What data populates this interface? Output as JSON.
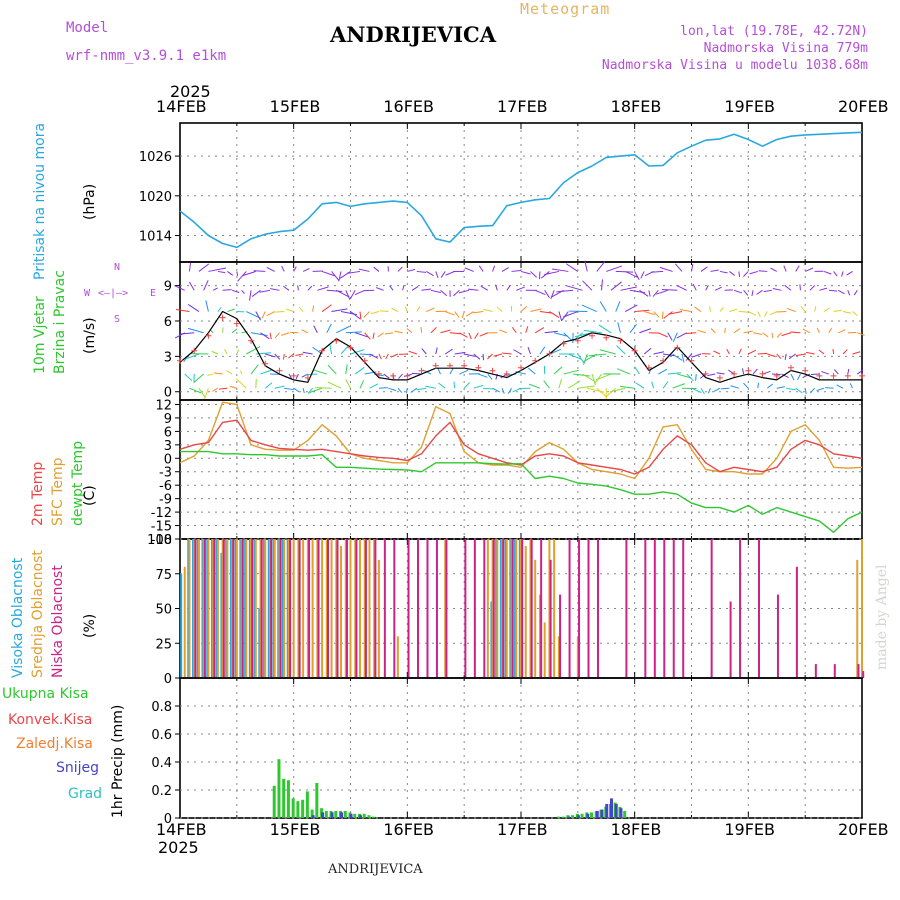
{
  "header": {
    "model_label": "Model",
    "model_name": "wrf-nmm_v3.9.1  e1km",
    "title": "Meteogram",
    "station": "ANDRIJEVICA",
    "coords": "lon,lat (19.78E, 42.72N)",
    "elevation": "Nadmorska Visina 779m",
    "model_elevation": "Nadmorska Visina u modelu 1038.68m",
    "year_top": "2025",
    "year_bottom": "2025",
    "footer_station": "ANDRIJEVICA",
    "credit": "made by Angel"
  },
  "axis": {
    "dates": [
      "14FEB",
      "15FEB",
      "16FEB",
      "17FEB",
      "18FEB",
      "19FEB",
      "20FEB"
    ]
  },
  "labels": {
    "pressure": "Pritisak na nivou mora",
    "pressure_unit": "(hPa)",
    "wind_1": "10m Vjetar",
    "wind_2": "Brzina i Pravac",
    "wind_unit": "(m/s)",
    "compass_n": "N",
    "compass_s": "S",
    "compass_w": "W",
    "compass_e": "E",
    "temp_2m": "2m Temp",
    "temp_sfc": "SFC Temp",
    "temp_dew": "dewpt Temp",
    "temp_unit": "(C)",
    "cloud_high": "Visoka Oblacnost",
    "cloud_mid": "Srednja Oblacnost",
    "cloud_low": "Niska Oblacnost",
    "cloud_unit": "(%)",
    "precip_total": "Ukupna Kisa",
    "precip_conv": "Konvek.Kisa",
    "precip_frozen": "Zaledj.Kisa",
    "precip_snow": "Snijeg",
    "precip_hail": "Grad",
    "precip_unit": "1hr Precip (mm)"
  },
  "colors": {
    "pressure": "#29a8e0",
    "temp_2m": "#e8474a",
    "temp_sfc": "#e0a030",
    "temp_dew": "#2ec82e",
    "cloud_high": "#29a8e0",
    "cloud_mid": "#e0a030",
    "cloud_low": "#cc2288",
    "precip_total": "#2ec82e",
    "precip_conv": "#e8474a",
    "precip_frozen": "#f07f30",
    "precip_snow": "#4444cc",
    "precip_hail": "#30c0c0",
    "wind_purple": "#8a2be2",
    "credit": "#cfd8cf"
  },
  "chart_data": [
    {
      "type": "line",
      "panel": "pressure",
      "ylim": [
        1010,
        1031
      ],
      "yticks": [
        "1014",
        "1020",
        "1026"
      ],
      "series": [
        {
          "x": [
            0,
            3,
            6,
            9,
            12,
            15,
            18,
            21,
            24,
            27,
            30,
            33,
            36,
            39,
            42,
            45,
            48,
            51,
            54,
            57,
            60,
            63,
            66,
            69,
            72,
            75,
            78,
            81,
            84,
            87,
            90,
            93,
            96,
            99,
            102,
            105,
            108,
            111,
            114,
            117,
            120,
            123,
            126,
            129,
            132,
            135,
            138,
            141,
            144
          ],
          "values": [
            1017.7,
            1016,
            1014,
            1012.8,
            1012.2,
            1013.5,
            1014.2,
            1014.6,
            1014.8,
            1016.5,
            1018.8,
            1019,
            1018.4,
            1018.8,
            1019,
            1019.2,
            1019,
            1017,
            1013.5,
            1013,
            1015.2,
            1015.4,
            1015.5,
            1018.5,
            1019,
            1019.4,
            1019.6,
            1022,
            1023.5,
            1024.5,
            1025.8,
            1026,
            1026.2,
            1024.5,
            1024.6,
            1026.5,
            1027.5,
            1028.4,
            1028.6,
            1029.3,
            1028.5,
            1027.5,
            1028.5,
            1029,
            1029.2,
            1029.3,
            1029.4,
            1029.5,
            1029.6
          ]
        }
      ]
    },
    {
      "type": "line",
      "panel": "wind",
      "ylim": [
        -0.7,
        11
      ],
      "yticks": [
        "0",
        "3",
        "6",
        "9"
      ],
      "series": [
        {
          "x": [
            0,
            3,
            6,
            9,
            12,
            15,
            18,
            21,
            24,
            27,
            30,
            33,
            36,
            39,
            42,
            45,
            48,
            51,
            54,
            57,
            60,
            63,
            66,
            69,
            72,
            75,
            78,
            81,
            84,
            87,
            90,
            93,
            96,
            99,
            102,
            105,
            108,
            111,
            114,
            117,
            120,
            123,
            126,
            129,
            132,
            135,
            138,
            141,
            144
          ],
          "values": [
            2.5,
            3.5,
            5,
            6.8,
            6.2,
            4.5,
            2.2,
            1.5,
            1,
            0.8,
            3.5,
            4.5,
            3.8,
            2.5,
            1.2,
            1,
            1,
            1.5,
            2,
            2,
            2,
            1.8,
            1.5,
            1.2,
            1.8,
            2.5,
            3.2,
            4.2,
            4.5,
            5,
            4.8,
            4.5,
            3.5,
            1.8,
            2.5,
            3.8,
            2.5,
            1.2,
            0.8,
            1.2,
            1.5,
            1.2,
            1,
            1.8,
            1.5,
            1,
            1,
            1,
            1
          ]
        }
      ]
    },
    {
      "type": "line",
      "panel": "temperature",
      "ylim": [
        -18,
        13
      ],
      "yticks": [
        "12",
        "9",
        "6",
        "3",
        "0",
        "-3",
        "-6",
        "-9",
        "-12",
        "-15",
        "-18"
      ],
      "series": [
        {
          "x": [
            0,
            3,
            6,
            9,
            12,
            15,
            18,
            21,
            24,
            27,
            30,
            33,
            36,
            39,
            42,
            45,
            48,
            51,
            54,
            57,
            60,
            63,
            66,
            69,
            72,
            75,
            78,
            81,
            84,
            87,
            90,
            93,
            96,
            99,
            102,
            105,
            108,
            111,
            114,
            117,
            120,
            123,
            126,
            129,
            132,
            135,
            138,
            141,
            144
          ],
          "values": [
            2,
            3,
            3.5,
            8,
            8.5,
            4,
            3,
            2.2,
            2,
            1.8,
            2,
            1.5,
            1,
            0.5,
            0.2,
            0,
            -0.5,
            1,
            5,
            8,
            3,
            1,
            0,
            -1,
            -1.5,
            0.5,
            1,
            0.5,
            -1,
            -1.5,
            -2,
            -2.5,
            -3.5,
            -2,
            2,
            5,
            3,
            -1,
            -3,
            -2,
            -2.5,
            -3,
            -2,
            2,
            4,
            3,
            1,
            0.5,
            0
          ]
        },
        {
          "x": [
            0,
            3,
            6,
            9,
            12,
            15,
            18,
            21,
            24,
            27,
            30,
            33,
            36,
            39,
            42,
            45,
            48,
            51,
            54,
            57,
            60,
            63,
            66,
            69,
            72,
            75,
            78,
            81,
            84,
            87,
            90,
            93,
            96,
            99,
            102,
            105,
            108,
            111,
            114,
            117,
            120,
            123,
            126,
            129,
            132,
            135,
            138,
            141,
            144
          ],
          "values": [
            -1,
            0.5,
            4,
            12.5,
            12,
            3,
            2,
            1.8,
            1.8,
            4,
            7.5,
            5,
            1,
            0,
            -0.5,
            -1,
            -1,
            2.5,
            11.5,
            10,
            1.5,
            -1,
            -1.5,
            -1.5,
            -2,
            1.5,
            3.5,
            2,
            -1,
            -2.5,
            -3,
            -3.5,
            -4.5,
            0,
            7,
            7.5,
            2,
            -2.5,
            -3,
            -3,
            -3.5,
            -3.5,
            0,
            6,
            7.5,
            4,
            -2,
            -2.2,
            -2
          ]
        },
        {
          "x": [
            0,
            3,
            6,
            9,
            12,
            15,
            18,
            21,
            24,
            27,
            30,
            33,
            36,
            39,
            42,
            45,
            48,
            51,
            54,
            57,
            60,
            63,
            66,
            69,
            72,
            75,
            78,
            81,
            84,
            87,
            90,
            93,
            96,
            99,
            102,
            105,
            108,
            111,
            114,
            117,
            120,
            123,
            126,
            129,
            132,
            135,
            138,
            141,
            144
          ],
          "values": [
            1.5,
            1.5,
            1.5,
            1,
            1,
            0.8,
            0.8,
            0.5,
            0.5,
            0.5,
            0.8,
            -2,
            -2,
            -2.2,
            -2.4,
            -2.5,
            -2.6,
            -3,
            -1,
            -1,
            -1,
            -1,
            -1.2,
            -1.3,
            -1.2,
            -4.5,
            -4,
            -4.5,
            -5.5,
            -5.8,
            -6.2,
            -7,
            -8,
            -8,
            -7.5,
            -8,
            -10,
            -11,
            -11,
            -12,
            -10.5,
            -12.5,
            -11,
            -12,
            -13,
            -14,
            -16.5,
            -13.5,
            -12
          ]
        }
      ]
    },
    {
      "type": "bar",
      "panel": "clouds",
      "ylim": [
        0,
        100
      ],
      "yticks": [
        "0",
        "25",
        "50",
        "75",
        "100"
      ],
      "series": [
        {
          "name": "Visoka Oblacnost",
          "x": [
            0.5,
            2,
            3,
            4,
            5,
            6,
            7,
            8,
            9,
            10,
            11,
            12,
            13,
            14,
            15,
            16,
            17,
            18,
            19,
            20,
            21,
            22,
            23,
            66,
            67,
            68,
            69,
            70,
            71,
            72
          ],
          "values": [
            75,
            100,
            100,
            100,
            100,
            100,
            100,
            100,
            90,
            100,
            100,
            100,
            100,
            100,
            100,
            100,
            50,
            100,
            100,
            100,
            100,
            100,
            100,
            55,
            100,
            100,
            100,
            100,
            100,
            100
          ]
        },
        {
          "name": "Srednja Oblacnost",
          "x": [
            1,
            2,
            3,
            4,
            5,
            6,
            7,
            8,
            9,
            10,
            11,
            12,
            13,
            14,
            15,
            16,
            17,
            18,
            19,
            20,
            21,
            22,
            23,
            24,
            25,
            26,
            27,
            28,
            29,
            30,
            31,
            32,
            33,
            34,
            35,
            36,
            37,
            38,
            39,
            40,
            41,
            42,
            46,
            56,
            65,
            66,
            67,
            68,
            69,
            70,
            71,
            72,
            73,
            74,
            75,
            76,
            77,
            78,
            79,
            80,
            84,
            143,
            144
          ],
          "values": [
            80,
            100,
            100,
            100,
            100,
            100,
            100,
            100,
            100,
            100,
            100,
            100,
            100,
            100,
            100,
            100,
            100,
            100,
            100,
            100,
            100,
            100,
            100,
            100,
            100,
            100,
            100,
            100,
            100,
            100,
            100,
            100,
            100,
            95,
            100,
            100,
            100,
            100,
            100,
            100,
            100,
            85,
            30,
            100,
            100,
            100,
            100,
            100,
            100,
            100,
            100,
            100,
            95,
            100,
            85,
            60,
            40,
            100,
            100,
            30,
            30,
            85,
            100
          ]
        },
        {
          "name": "Niska Oblacnost",
          "x": [
            3,
            5,
            7,
            9,
            11,
            13,
            15,
            17,
            19,
            21,
            23,
            25,
            27,
            29,
            31,
            33,
            35,
            37,
            39,
            41,
            43,
            45,
            48,
            50,
            52,
            54,
            56,
            60,
            62,
            64,
            66,
            68,
            70,
            72,
            74,
            76,
            78,
            80,
            82,
            84,
            86,
            88,
            94,
            98,
            100,
            102,
            104,
            106,
            112,
            116,
            118,
            122,
            126,
            130,
            134,
            138,
            143,
            144
          ],
          "values": [
            100,
            100,
            100,
            100,
            100,
            100,
            100,
            100,
            100,
            100,
            100,
            100,
            100,
            100,
            100,
            100,
            100,
            100,
            100,
            100,
            100,
            100,
            100,
            100,
            100,
            100,
            100,
            100,
            100,
            100,
            100,
            100,
            100,
            100,
            100,
            100,
            85,
            60,
            100,
            100,
            100,
            100,
            100,
            100,
            100,
            100,
            100,
            100,
            100,
            55,
            100,
            100,
            60,
            80,
            10,
            10,
            10,
            5
          ]
        }
      ]
    },
    {
      "type": "bar",
      "panel": "precipitation",
      "ylim": [
        0,
        1
      ],
      "yticks": [
        "0",
        "0.2",
        "0.4",
        "0.6",
        "0.8"
      ],
      "series": [
        {
          "name": "Ukupna Kisa",
          "x": [
            20,
            21,
            22,
            23,
            24,
            25,
            26,
            27,
            28,
            29,
            30,
            31,
            32,
            33,
            34,
            35,
            36,
            37,
            38,
            39,
            40,
            41,
            80,
            81,
            82,
            83,
            84,
            85,
            86,
            87,
            88,
            89,
            90,
            91,
            92,
            93,
            94
          ],
          "values": [
            0.23,
            0.42,
            0.28,
            0.27,
            0.14,
            0.12,
            0.13,
            0.19,
            0.06,
            0.25,
            0.07,
            0.05,
            0.05,
            0.05,
            0.05,
            0.05,
            0.04,
            0.03,
            0.03,
            0.03,
            0.02,
            0.01,
            0.01,
            0.01,
            0.02,
            0.02,
            0.03,
            0.03,
            0.04,
            0.04,
            0.05,
            0.06,
            0.08,
            0.1,
            0.11,
            0.08,
            0.05
          ]
        },
        {
          "name": "Snijeg",
          "x": [
            28,
            30,
            32,
            34,
            36,
            38,
            82,
            84,
            86,
            88,
            89,
            90,
            91,
            92,
            93
          ],
          "values": [
            0.02,
            0.04,
            0.04,
            0.04,
            0.03,
            0.02,
            0.01,
            0.02,
            0.03,
            0.05,
            0.06,
            0.1,
            0.14,
            0.1,
            0.07
          ]
        }
      ]
    }
  ]
}
